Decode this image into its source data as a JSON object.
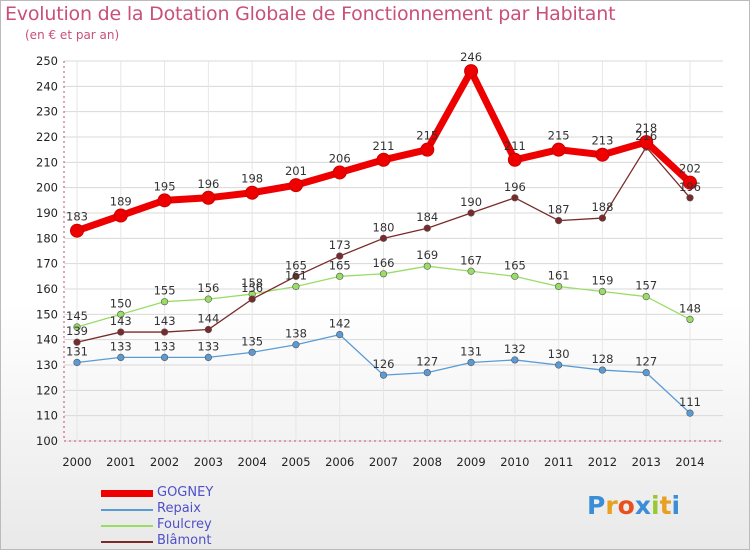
{
  "header": {
    "title": "Evolution de la Dotation Globale de Fonctionnement par Habitant",
    "subtitle": "(en € et par an)"
  },
  "logo": {
    "text": "Proxiti",
    "letter_colors": [
      "#3a8ed8",
      "#e8a020",
      "#e85020",
      "#3a8ed8",
      "#9ac830",
      "#e8a020",
      "#3a8ed8"
    ]
  },
  "chart_data": {
    "type": "line",
    "x": [
      "2000",
      "2001",
      "2002",
      "2003",
      "2004",
      "2005",
      "2006",
      "2007",
      "2008",
      "2009",
      "2010",
      "2011",
      "2012",
      "2013",
      "2014"
    ],
    "ylim": [
      100,
      250
    ],
    "yticks": [
      100,
      110,
      120,
      130,
      140,
      150,
      160,
      170,
      180,
      190,
      200,
      210,
      220,
      230,
      240,
      250
    ],
    "grid": true,
    "legend_position": "bottom-left",
    "series": [
      {
        "name": "GOGNEY",
        "color": "#ee0000",
        "values": [
          183,
          189,
          195,
          196,
          198,
          201,
          206,
          211,
          215,
          246,
          211,
          215,
          213,
          218,
          202
        ]
      },
      {
        "name": "Repaix",
        "color": "#5b9bd5",
        "values": [
          131,
          133,
          133,
          133,
          135,
          138,
          142,
          126,
          127,
          131,
          132,
          130,
          128,
          127,
          111
        ]
      },
      {
        "name": "Foulcrey",
        "color": "#99dd66",
        "values": [
          145,
          150,
          155,
          156,
          158,
          161,
          165,
          166,
          169,
          167,
          165,
          161,
          159,
          157,
          148
        ]
      },
      {
        "name": "Blâmont",
        "color": "#7a2a2a",
        "values": [
          139,
          143,
          143,
          144,
          156,
          165,
          173,
          180,
          184,
          190,
          196,
          187,
          188,
          216,
          196
        ]
      }
    ]
  }
}
